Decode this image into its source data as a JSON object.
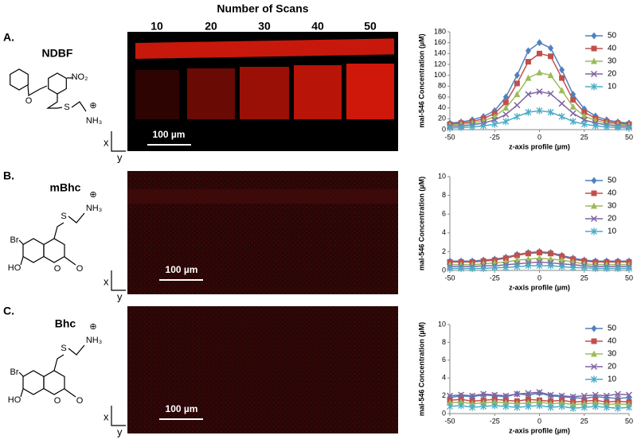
{
  "figure": {
    "header": "Number of Scans",
    "scans": [
      10,
      20,
      30,
      40,
      50
    ],
    "panels": [
      {
        "label": "A.",
        "compound": "NDBF",
        "scale_bar": "100 µm",
        "axes": [
          "x",
          "y"
        ],
        "atoms": [
          "O",
          "NO₂",
          "S",
          "NH₃",
          "⊕"
        ]
      },
      {
        "label": "B.",
        "compound": "mBhc",
        "scale_bar": "100 µm",
        "axes": [
          "x",
          "y"
        ],
        "atoms": [
          "S",
          "NH₃",
          "⊕",
          "Br",
          "HO",
          "O",
          "O"
        ]
      },
      {
        "label": "C.",
        "compound": "Bhc",
        "scale_bar": "100 µm",
        "axes": [
          "x",
          "y"
        ],
        "atoms": [
          "S",
          "NH₃",
          "⊕",
          "Br",
          "HO",
          "O",
          "O"
        ]
      }
    ]
  },
  "chart_data": [
    {
      "type": "line",
      "y_label": "mal-546 Concentration (µM)",
      "x_label": "z-axis profile (µm)",
      "x": [
        -50,
        -43.75,
        -37.5,
        -31.25,
        -25,
        -18.75,
        -12.5,
        -6.25,
        0,
        6.25,
        12.5,
        18.75,
        25,
        31.25,
        37.5,
        43.75,
        50
      ],
      "xlim": [
        -50,
        50
      ],
      "xticks": [
        -50,
        -25,
        0,
        25,
        50
      ],
      "ylim": [
        0,
        180
      ],
      "yticks": [
        0,
        20,
        40,
        60,
        80,
        100,
        120,
        140,
        160,
        180
      ],
      "legend": "upper right",
      "series": [
        {
          "name": "50",
          "color": "#4f81bd",
          "marker": "diamond",
          "values": [
            12,
            14,
            18,
            24,
            35,
            60,
            100,
            145,
            160,
            150,
            110,
            65,
            38,
            25,
            18,
            14,
            12
          ]
        },
        {
          "name": "40",
          "color": "#c0504d",
          "marker": "square",
          "values": [
            10,
            12,
            15,
            20,
            30,
            50,
            85,
            125,
            140,
            135,
            95,
            55,
            32,
            21,
            15,
            12,
            10
          ]
        },
        {
          "name": "30",
          "color": "#9bbb59",
          "marker": "triangle",
          "values": [
            8,
            10,
            12,
            16,
            24,
            40,
            65,
            95,
            105,
            100,
            72,
            42,
            25,
            17,
            12,
            10,
            8
          ]
        },
        {
          "name": "20",
          "color": "#8064a2",
          "marker": "x",
          "values": [
            6,
            7,
            9,
            12,
            18,
            28,
            45,
            65,
            70,
            66,
            48,
            30,
            18,
            12,
            9,
            7,
            6
          ]
        },
        {
          "name": "10",
          "color": "#4bacc6",
          "marker": "star",
          "values": [
            3,
            4,
            5,
            7,
            10,
            15,
            24,
            32,
            35,
            32,
            24,
            15,
            10,
            7,
            5,
            4,
            3
          ]
        }
      ]
    },
    {
      "type": "line",
      "y_label": "mal-546 Concentration (µM)",
      "x_label": "z-axis profile (µm)",
      "x": [
        -50,
        -43.75,
        -37.5,
        -31.25,
        -25,
        -18.75,
        -12.5,
        -6.25,
        0,
        6.25,
        12.5,
        18.75,
        25,
        31.25,
        37.5,
        43.75,
        50
      ],
      "xlim": [
        -50,
        50
      ],
      "xticks": [
        -50,
        -25,
        0,
        25,
        50
      ],
      "ylim": [
        0,
        10
      ],
      "yticks": [
        0,
        2,
        4,
        6,
        8,
        10
      ],
      "legend": "upper right",
      "series": [
        {
          "name": "50",
          "color": "#4f81bd",
          "marker": "diamond",
          "values": [
            1,
            1,
            1,
            1.1,
            1.2,
            1.4,
            1.7,
            1.9,
            2.0,
            1.9,
            1.6,
            1.3,
            1.1,
            1,
            1,
            1,
            1
          ]
        },
        {
          "name": "40",
          "color": "#c0504d",
          "marker": "square",
          "values": [
            0.9,
            0.9,
            0.9,
            1,
            1.1,
            1.3,
            1.6,
            1.8,
            1.9,
            1.8,
            1.5,
            1.2,
            1,
            0.9,
            0.9,
            0.9,
            0.9
          ]
        },
        {
          "name": "30",
          "color": "#9bbb59",
          "marker": "triangle",
          "values": [
            0.6,
            0.6,
            0.6,
            0.7,
            0.8,
            0.9,
            1.1,
            1.2,
            1.3,
            1.2,
            1.1,
            0.9,
            0.7,
            0.6,
            0.6,
            0.6,
            0.6
          ]
        },
        {
          "name": "20",
          "color": "#8064a2",
          "marker": "x",
          "values": [
            0.4,
            0.4,
            0.4,
            0.5,
            0.5,
            0.6,
            0.7,
            0.8,
            0.9,
            0.8,
            0.7,
            0.6,
            0.5,
            0.4,
            0.4,
            0.4,
            0.4
          ]
        },
        {
          "name": "10",
          "color": "#4bacc6",
          "marker": "star",
          "values": [
            0.2,
            0.2,
            0.2,
            0.2,
            0.3,
            0.3,
            0.4,
            0.5,
            0.5,
            0.5,
            0.4,
            0.3,
            0.3,
            0.2,
            0.2,
            0.2,
            0.2
          ]
        }
      ]
    },
    {
      "type": "line",
      "y_label": "mal-546 Concentration (µM)",
      "x_label": "z-axis profile (µm)",
      "x": [
        -50,
        -43.75,
        -37.5,
        -31.25,
        -25,
        -18.75,
        -12.5,
        -6.25,
        0,
        6.25,
        12.5,
        18.75,
        25,
        31.25,
        37.5,
        43.75,
        50
      ],
      "xlim": [
        -50,
        50
      ],
      "xticks": [
        -50,
        -25,
        0,
        25,
        50
      ],
      "ylim": [
        0,
        10
      ],
      "yticks": [
        0,
        2,
        4,
        6,
        8,
        10
      ],
      "legend": "upper right",
      "series": [
        {
          "name": "50",
          "color": "#4f81bd",
          "marker": "diamond",
          "values": [
            1.8,
            2.0,
            1.9,
            2.1,
            2.0,
            1.9,
            2.2,
            2.1,
            2.3,
            2.0,
            1.9,
            1.8,
            1.7,
            1.9,
            1.8,
            1.7,
            1.8
          ]
        },
        {
          "name": "40",
          "color": "#c0504d",
          "marker": "square",
          "values": [
            1.5,
            1.6,
            1.4,
            1.5,
            1.6,
            1.5,
            1.4,
            1.6,
            1.5,
            1.4,
            1.5,
            1.3,
            1.4,
            1.5,
            1.3,
            1.4,
            1.3
          ]
        },
        {
          "name": "30",
          "color": "#9bbb59",
          "marker": "triangle",
          "values": [
            1.2,
            1.3,
            1.1,
            1.2,
            1.3,
            1.2,
            1.1,
            1.2,
            1.3,
            1.1,
            1.2,
            1.0,
            1.1,
            1.2,
            1.0,
            1.1,
            1.0
          ]
        },
        {
          "name": "20",
          "color": "#8064a2",
          "marker": "x",
          "values": [
            2.0,
            2.1,
            2.0,
            2.2,
            2.1,
            2.0,
            2.2,
            2.3,
            2.4,
            2.1,
            2.0,
            1.9,
            2.0,
            2.1,
            2.0,
            2.2,
            2.1
          ]
        },
        {
          "name": "10",
          "color": "#4bacc6",
          "marker": "star",
          "values": [
            0.8,
            0.9,
            0.7,
            0.8,
            0.9,
            0.8,
            0.7,
            0.8,
            0.9,
            0.7,
            0.8,
            0.6,
            0.7,
            0.8,
            0.7,
            0.6,
            0.7
          ]
        }
      ]
    }
  ]
}
